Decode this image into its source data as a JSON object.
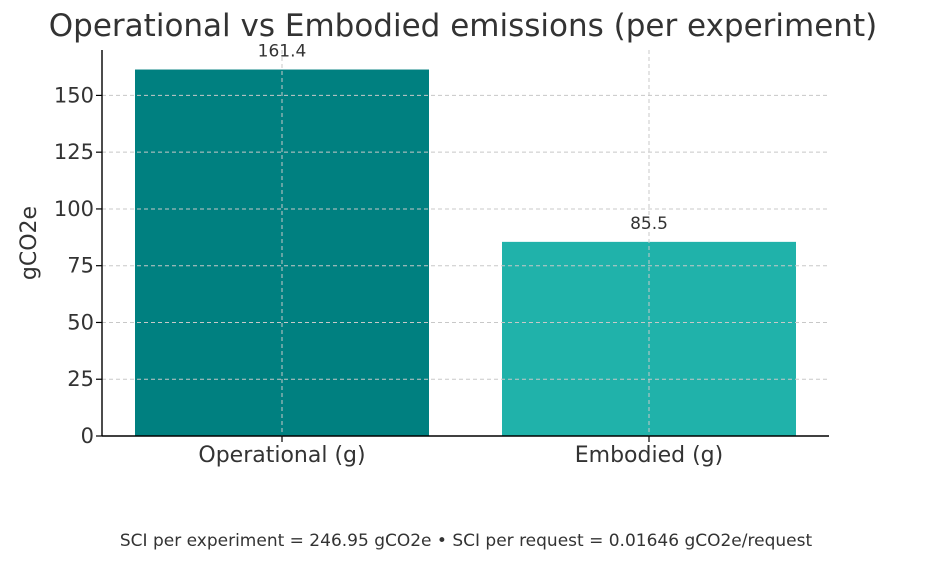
{
  "chart_data": {
    "type": "bar",
    "title": "Operational vs Embodied emissions (per experiment)",
    "xlabel": "",
    "ylabel": "gCO2e",
    "categories": [
      "Operational (g)",
      "Embodied (g)"
    ],
    "values": [
      161.4,
      85.5
    ],
    "data_labels": [
      "161.4",
      "85.5"
    ],
    "bar_colors": [
      "#008080",
      "#20B2AA"
    ],
    "ylim": [
      0,
      170
    ],
    "yticks": [
      0,
      25,
      50,
      75,
      100,
      125,
      150
    ],
    "grid": true,
    "legend": "none"
  },
  "footnote": "SCI per experiment = 246.95 gCO2e  •  SCI per request = 0.01646 gCO2e/request",
  "colors": {
    "text": "#333333",
    "grid": "#c8c8c8",
    "axis": "#000000"
  }
}
